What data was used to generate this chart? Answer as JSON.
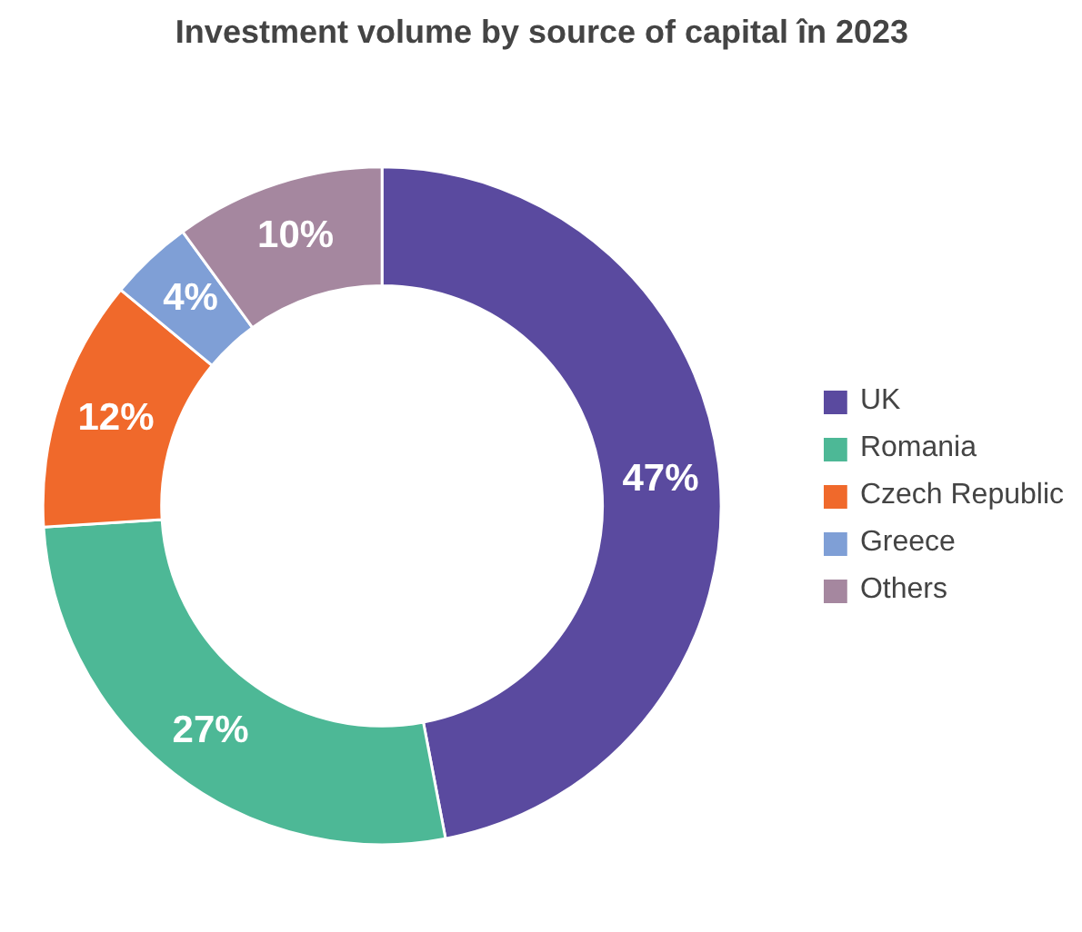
{
  "chart_data": {
    "type": "donut",
    "title": "Investment volume by source of capital în 2023",
    "categories": [
      "UK",
      "Romania",
      "Czech Republic",
      "Greece",
      "Others"
    ],
    "values": [
      47,
      27,
      12,
      4,
      10
    ],
    "value_labels": [
      "47%",
      "27%",
      "12%",
      "4%",
      "10%"
    ],
    "colors": [
      "#5a4a9f",
      "#4db896",
      "#f0692b",
      "#7f9fd6",
      "#a5879f"
    ],
    "legend": "right"
  }
}
